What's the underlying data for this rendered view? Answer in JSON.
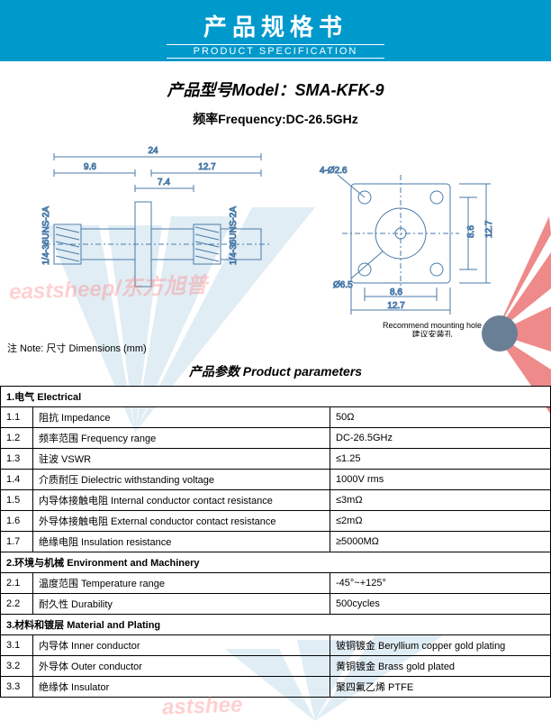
{
  "header": {
    "title_cn": "产品规格书",
    "title_en": "PRODUCT SPECIFICATION"
  },
  "model": {
    "label": "产品型号Model：",
    "value": "SMA-KFK-9"
  },
  "frequency": {
    "label": "频率Frequency:",
    "value": "DC-26.5GHz"
  },
  "diagram": {
    "side": {
      "dim_total": "24",
      "dim_left": "9.6",
      "dim_right": "12.7",
      "dim_flange": "7.4",
      "thread": "1/4-36UNS-2A"
    },
    "front": {
      "hole_callout": "4-Ø2.6",
      "center": "Ø6.5",
      "h1": "8.6",
      "h2": "12.7",
      "w1": "8.6",
      "w2": "12.7",
      "rec_label_en": "Recommend mounting hole",
      "rec_label_cn": "建议安装孔"
    }
  },
  "note": {
    "label": "注 Note:",
    "text": "尺寸 Dimensions (mm)"
  },
  "params_title": "产品参数 Product parameters",
  "sections": [
    {
      "header": "1.电气 Electrical",
      "rows": [
        {
          "n": "1.1",
          "param": "阻抗 Impedance",
          "value": "50Ω"
        },
        {
          "n": "1.2",
          "param": "频率范围 Frequency range",
          "value": "DC-26.5GHz"
        },
        {
          "n": "1.3",
          "param": "驻波 VSWR",
          "value": "≤1.25"
        },
        {
          "n": "1.4",
          "param": "介质耐压 Dielectric withstanding voltage",
          "value": "1000V rms"
        },
        {
          "n": "1.5",
          "param": "内导体接触电阻 Internal conductor contact resistance",
          "value": "≤3mΩ"
        },
        {
          "n": "1.6",
          "param": "外导体接触电阻 External conductor contact resistance",
          "value": "≤2mΩ"
        },
        {
          "n": "1.7",
          "param": "绝缘电阻  Insulation resistance",
          "value": "≥5000MΩ"
        }
      ]
    },
    {
      "header": "2.环境与机械 Environment and Machinery",
      "rows": [
        {
          "n": "2.1",
          "param": "温度范围 Temperature range",
          "value": "-45°~+125°"
        },
        {
          "n": "2.2",
          "param": "耐久性 Durability",
          "value": "500cycles"
        }
      ]
    },
    {
      "header": "3.材料和镀层 Material and Plating",
      "rows": [
        {
          "n": "3.1",
          "param": "内导体 Inner conductor",
          "value": "铍铜镀金 Beryllium copper gold plating"
        },
        {
          "n": "3.2",
          "param": "外导体 Outer conductor",
          "value": "黄铜镀金 Brass gold plated"
        },
        {
          "n": "3.3",
          "param": "绝缘体 Insulator",
          "value": "聚四氟乙烯 PTFE"
        }
      ]
    }
  ],
  "watermark": "eastsheep/东方旭普",
  "watermark2": "astshee",
  "colors": {
    "banner": "#0099cc",
    "deco_blue": "#a8cde0",
    "deco_red": "#e85a5a"
  }
}
